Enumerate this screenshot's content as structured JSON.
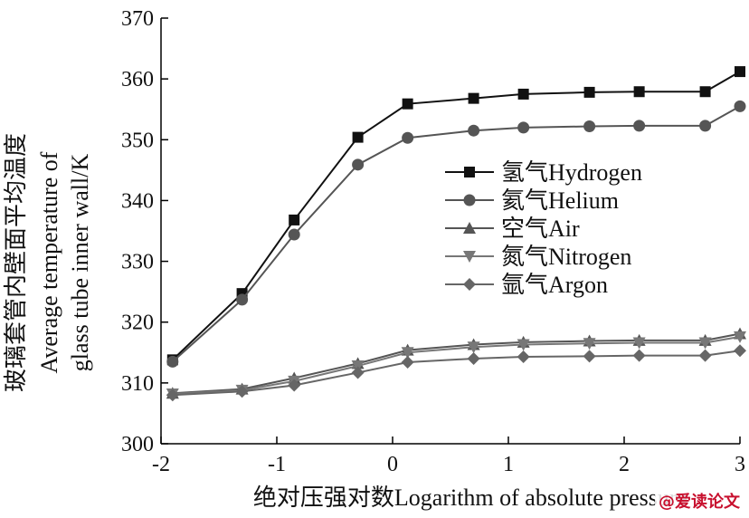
{
  "chart_data": {
    "type": "line",
    "x": [
      -1.9,
      -1.3,
      -0.85,
      -0.3,
      0.13,
      0.7,
      1.13,
      1.7,
      2.13,
      2.7,
      3.0
    ],
    "xlim": [
      -2,
      3
    ],
    "ylim": [
      300,
      370
    ],
    "xticks": [
      -2,
      -1,
      0,
      1,
      2,
      3
    ],
    "yticks": [
      300,
      310,
      320,
      330,
      340,
      350,
      360,
      370
    ],
    "xticklabels": [
      "-2",
      "-1",
      "0",
      "1",
      "2",
      "3"
    ],
    "yticklabels": [
      "300",
      "310",
      "320",
      "330",
      "340",
      "350",
      "360",
      "370"
    ],
    "xlabel": "绝对压强对数Logarithm of absolute pressure",
    "ylabel_cn": "玻璃套管内壁面平均温度",
    "ylabel_en_1": "Average temperature of",
    "ylabel_en_2": "glass tube inner wall/K",
    "legend_position": "center-right",
    "grid": false,
    "series": [
      {
        "name": "氢气Hydrogen",
        "marker": "square",
        "color": "#111111",
        "values": [
          313.8,
          324.7,
          336.8,
          350.4,
          355.9,
          356.8,
          357.5,
          357.8,
          357.9,
          357.9,
          361.2
        ]
      },
      {
        "name": "氦气Helium",
        "marker": "circle",
        "color": "#555555",
        "values": [
          313.5,
          323.7,
          334.4,
          345.9,
          350.3,
          351.5,
          352.0,
          352.2,
          352.3,
          352.3,
          355.5
        ]
      },
      {
        "name": "空气Air",
        "marker": "triangle-up",
        "color": "#555555",
        "values": [
          308.3,
          309.0,
          310.8,
          313.2,
          315.4,
          316.3,
          316.7,
          316.9,
          317.0,
          317.0,
          318.1
        ]
      },
      {
        "name": "氮气Nitrogen",
        "marker": "triangle-down",
        "color": "#777777",
        "values": [
          308.2,
          308.8,
          310.3,
          312.8,
          315.0,
          315.9,
          316.3,
          316.5,
          316.6,
          316.6,
          317.6
        ]
      },
      {
        "name": "氩气Argon",
        "marker": "diamond",
        "color": "#666666",
        "values": [
          308.0,
          308.6,
          309.6,
          311.7,
          313.4,
          314.0,
          314.3,
          314.4,
          314.5,
          314.5,
          315.3
        ]
      }
    ]
  },
  "watermark": "@爱读论文"
}
